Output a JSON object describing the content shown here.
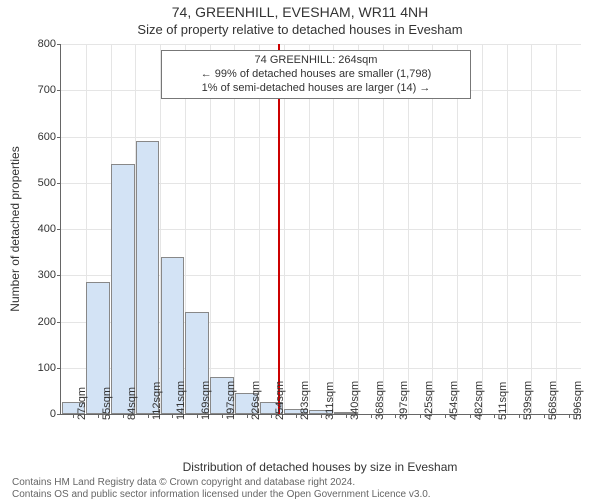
{
  "title_main": "74, GREENHILL, EVESHAM, WR11 4NH",
  "title_sub": "Size of property relative to detached houses in Evesham",
  "y_axis_label": "Number of detached properties",
  "x_axis_label": "Distribution of detached houses by size in Evesham",
  "annotation": {
    "line1": "74 GREENHILL: 264sqm",
    "line2": "← 99% of detached houses are smaller (1,798)",
    "line3": "1% of semi-detached houses are larger (14) →"
  },
  "footer1": "Contains HM Land Registry data © Crown copyright and database right 2024.",
  "footer2": "Contains OS and public sector information licensed under the Open Government Licence v3.0.",
  "chart": {
    "type": "histogram",
    "bar_fill": "#d3e3f5",
    "bar_border": "#888888",
    "marker_color": "#cc0000",
    "marker_value_sqm": 264,
    "background": "#ffffff",
    "grid_color": "#e5e5e5",
    "axis_color": "#666666",
    "tick_fontsize": 11,
    "label_fontsize": 12,
    "title_fontsize": 14,
    "x_min": 27,
    "x_max": 596,
    "x_tick_step": 28.45,
    "x_tick_unit": "sqm",
    "y_min": 0,
    "y_max": 800,
    "y_tick_step": 100,
    "x_ticks": [
      27,
      55,
      84,
      112,
      141,
      169,
      197,
      226,
      254,
      283,
      311,
      340,
      368,
      397,
      425,
      454,
      482,
      511,
      539,
      568,
      596
    ],
    "categories": [
      "27sqm",
      "55sqm",
      "84sqm",
      "112sqm",
      "141sqm",
      "169sqm",
      "197sqm",
      "226sqm",
      "254sqm",
      "283sqm",
      "311sqm",
      "340sqm",
      "368sqm",
      "397sqm",
      "425sqm",
      "454sqm",
      "482sqm",
      "511sqm",
      "539sqm",
      "568sqm",
      "596sqm"
    ],
    "values": [
      25,
      285,
      540,
      590,
      340,
      220,
      80,
      45,
      25,
      10,
      8,
      5,
      0,
      0,
      0,
      0,
      0,
      0,
      0,
      0,
      0
    ]
  }
}
